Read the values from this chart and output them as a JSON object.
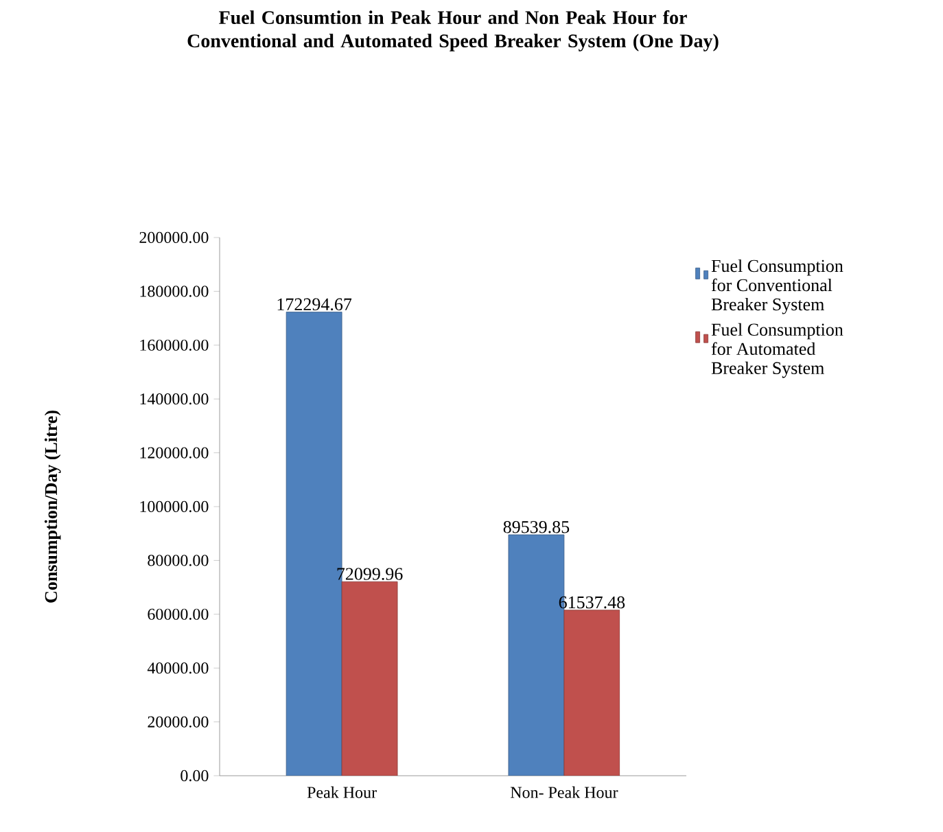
{
  "chart_data": {
    "type": "bar",
    "title": "Fuel Consumtion in Peak Hour and Non Peak Hour for Conventional and Automated Speed Breaker System (One Day)",
    "ylabel": "Consumption/Day (Litre)",
    "categories": [
      "Peak Hour",
      "Non- Peak Hour"
    ],
    "series": [
      {
        "name": "Fuel Consumption for Conventional Breaker System",
        "color": "#4f81bd",
        "values": [
          172294.67,
          89539.85
        ]
      },
      {
        "name": "Fuel Consumption for Automated Breaker System",
        "color": "#c0504d",
        "values": [
          72099.96,
          61537.48
        ]
      }
    ],
    "ylim": [
      0,
      200000
    ],
    "yticks": [
      {
        "value": 0,
        "label": "0.00"
      },
      {
        "value": 20000,
        "label": "20000.00"
      },
      {
        "value": 40000,
        "label": "40000.00"
      },
      {
        "value": 60000,
        "label": "60000.00"
      },
      {
        "value": 80000,
        "label": "80000.00"
      },
      {
        "value": 100000,
        "label": "100000.00"
      },
      {
        "value": 120000,
        "label": "120000.00"
      },
      {
        "value": 140000,
        "label": "140000.00"
      },
      {
        "value": 160000,
        "label": "160000.00"
      },
      {
        "value": 180000,
        "label": "180000.00"
      },
      {
        "value": 200000,
        "label": "200000.00"
      }
    ],
    "data_labels": true,
    "legend": "right"
  }
}
